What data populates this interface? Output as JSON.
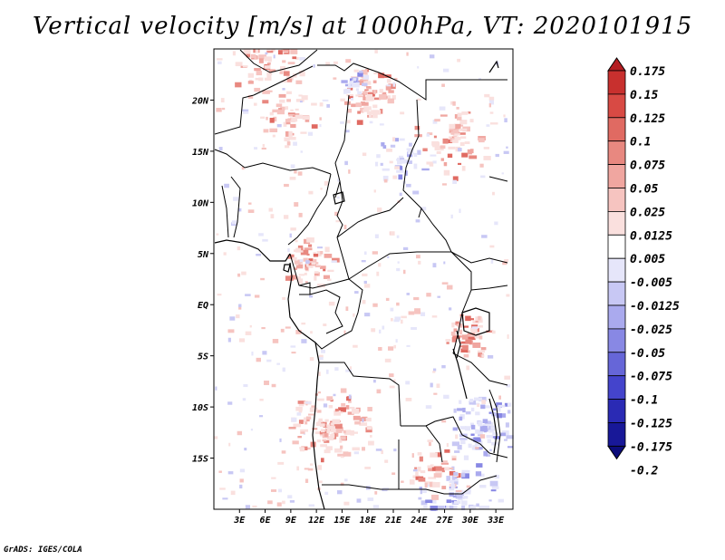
{
  "title": "Vertical velocity [m/s] at 1000hPa, VT: 2020101915",
  "footer": "GrADS: IGES/COLA",
  "map": {
    "lon_range": [
      0,
      35
    ],
    "lat_range": [
      -20,
      25
    ],
    "lat_ticks": [
      "20N",
      "15N",
      "10N",
      "5N",
      "EQ",
      "5S",
      "10S",
      "15S"
    ],
    "lon_ticks": [
      "3E",
      "6E",
      "9E",
      "12E",
      "15E",
      "18E",
      "21E",
      "24E",
      "27E",
      "30E",
      "33E"
    ]
  },
  "colorbar": {
    "levels": [
      "0.175",
      "0.15",
      "0.125",
      "0.1",
      "0.075",
      "0.05",
      "0.025",
      "0.0125",
      "0.005",
      "-0.005",
      "-0.0125",
      "-0.025",
      "-0.05",
      "-0.075",
      "-0.1",
      "-0.125",
      "-0.175",
      "-0.2"
    ],
    "colors": [
      "#b41e22",
      "#c8302e",
      "#d84a44",
      "#e06a62",
      "#e88880",
      "#f0a6a0",
      "#f6c4c0",
      "#fae0de",
      "#ffffff",
      "#e6e6fa",
      "#c8c8f4",
      "#aaaaee",
      "#8888e4",
      "#6666d8",
      "#4444cc",
      "#2a2ab4",
      "#181898",
      "#0c0c7a"
    ]
  }
}
